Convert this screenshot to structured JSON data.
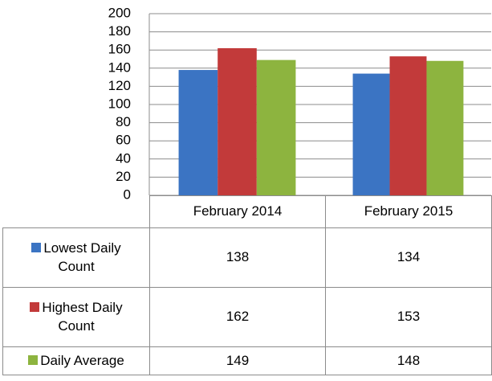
{
  "chart_data": {
    "type": "bar",
    "categories": [
      "February 2014",
      "February 2015"
    ],
    "series": [
      {
        "name": "Lowest Daily Count",
        "color": "#3b74c3",
        "values": [
          138,
          134
        ]
      },
      {
        "name": "Highest Daily Count",
        "color": "#c23a3a",
        "values": [
          162,
          153
        ]
      },
      {
        "name": "Daily Average",
        "color": "#8db43f",
        "values": [
          149,
          148
        ]
      }
    ],
    "ylim": [
      0,
      200
    ],
    "yticks": [
      0,
      20,
      40,
      60,
      80,
      100,
      120,
      140,
      160,
      180,
      200
    ],
    "grid": true
  }
}
